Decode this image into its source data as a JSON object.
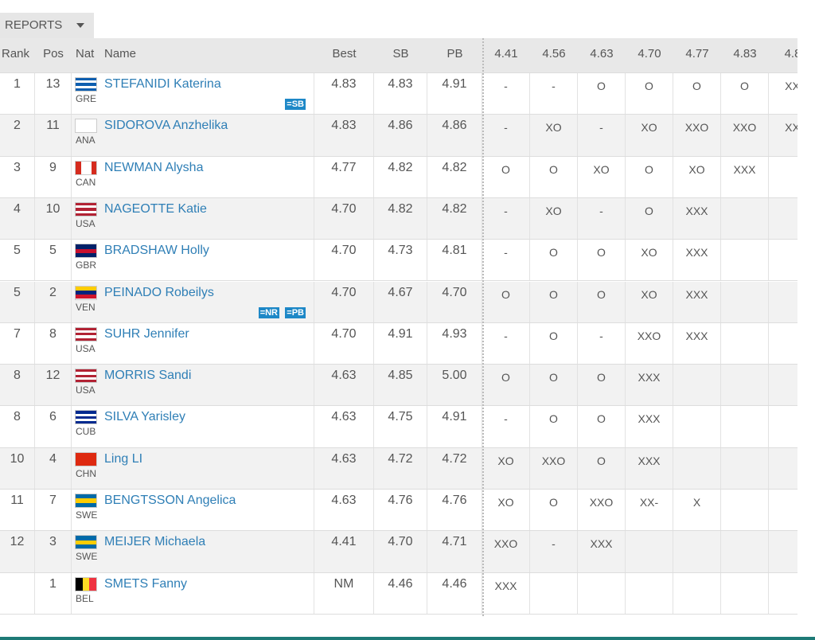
{
  "reports_button": "REPORTS",
  "table": {
    "headers": [
      "Rank",
      "Pos",
      "Nat",
      "Name",
      "Best",
      "SB",
      "PB",
      "4.41",
      "4.56",
      "4.63",
      "4.70",
      "4.77",
      "4.83",
      "4.8"
    ],
    "rows": [
      {
        "rank": "1",
        "pos": "13",
        "nat": "GRE",
        "name": "STEFANIDI Katerina",
        "badges": [
          "=SB"
        ],
        "best": "4.83",
        "sb": "4.83",
        "pb": "4.91",
        "attempts": [
          "-",
          "-",
          "O",
          "O",
          "O",
          "O",
          "XX"
        ],
        "flag": {
          "dir": "h",
          "colors": [
            "#0d5eaf",
            "#ffffff",
            "#0d5eaf",
            "#ffffff",
            "#0d5eaf"
          ]
        }
      },
      {
        "rank": "2",
        "pos": "11",
        "nat": "ANA",
        "name": "SIDOROVA Anzhelika",
        "best": "4.83",
        "sb": "4.86",
        "pb": "4.86",
        "attempts": [
          "-",
          "XO",
          "-",
          "XO",
          "XXO",
          "XXO",
          "XX"
        ],
        "flag": {
          "dir": "h",
          "colors": [
            "#ffffff"
          ]
        }
      },
      {
        "rank": "3",
        "pos": "9",
        "nat": "CAN",
        "name": "NEWMAN Alysha",
        "best": "4.77",
        "sb": "4.82",
        "pb": "4.82",
        "attempts": [
          "O",
          "O",
          "XO",
          "O",
          "XO",
          "XXX"
        ],
        "flag": {
          "dir": "v",
          "colors": [
            "#d52b1e",
            "#ffffff",
            "#ffffff",
            "#d52b1e"
          ]
        }
      },
      {
        "rank": "4",
        "pos": "10",
        "nat": "USA",
        "name": "NAGEOTTE Katie",
        "best": "4.70",
        "sb": "4.82",
        "pb": "4.82",
        "attempts": [
          "-",
          "XO",
          "-",
          "O",
          "XXX"
        ],
        "flag": {
          "dir": "h",
          "colors": [
            "#b22234",
            "#ffffff",
            "#b22234",
            "#ffffff",
            "#b22234"
          ]
        }
      },
      {
        "rank": "5",
        "pos": "5",
        "nat": "GBR",
        "name": "BRADSHAW Holly",
        "best": "4.70",
        "sb": "4.73",
        "pb": "4.81",
        "attempts": [
          "-",
          "O",
          "O",
          "XO",
          "XXX"
        ],
        "flag": {
          "dir": "h",
          "colors": [
            "#012169",
            "#c8102e",
            "#012169"
          ]
        }
      },
      {
        "rank": "5",
        "pos": "2",
        "nat": "VEN",
        "name": "PEINADO Robeilys",
        "badges": [
          "=NR",
          "=PB"
        ],
        "best": "4.70",
        "sb": "4.67",
        "pb": "4.70",
        "attempts": [
          "O",
          "O",
          "O",
          "XO",
          "XXX"
        ],
        "flag": {
          "dir": "h",
          "colors": [
            "#ffcc00",
            "#00247d",
            "#cf142b"
          ]
        }
      },
      {
        "rank": "7",
        "pos": "8",
        "nat": "USA",
        "name": "SUHR Jennifer",
        "best": "4.70",
        "sb": "4.91",
        "pb": "4.93",
        "attempts": [
          "-",
          "O",
          "-",
          "XXO",
          "XXX"
        ],
        "flag": {
          "dir": "h",
          "colors": [
            "#b22234",
            "#ffffff",
            "#b22234",
            "#ffffff",
            "#b22234"
          ]
        }
      },
      {
        "rank": "8",
        "pos": "12",
        "nat": "USA",
        "name": "MORRIS Sandi",
        "best": "4.63",
        "sb": "4.85",
        "pb": "5.00",
        "attempts": [
          "O",
          "O",
          "O",
          "XXX"
        ],
        "flag": {
          "dir": "h",
          "colors": [
            "#b22234",
            "#ffffff",
            "#b22234",
            "#ffffff",
            "#b22234"
          ]
        }
      },
      {
        "rank": "8",
        "pos": "6",
        "nat": "CUB",
        "name": "SILVA Yarisley",
        "best": "4.63",
        "sb": "4.75",
        "pb": "4.91",
        "attempts": [
          "-",
          "O",
          "O",
          "XXX"
        ],
        "flag": {
          "dir": "h",
          "colors": [
            "#002a8f",
            "#ffffff",
            "#002a8f",
            "#ffffff",
            "#002a8f"
          ]
        }
      },
      {
        "rank": "10",
        "pos": "4",
        "nat": "CHN",
        "name": "Ling LI",
        "best": "4.63",
        "sb": "4.72",
        "pb": "4.72",
        "attempts": [
          "XO",
          "XXO",
          "O",
          "XXX"
        ],
        "flag": {
          "dir": "h",
          "colors": [
            "#de2910"
          ]
        }
      },
      {
        "rank": "11",
        "pos": "7",
        "nat": "SWE",
        "name": "BENGTSSON Angelica",
        "best": "4.63",
        "sb": "4.76",
        "pb": "4.76",
        "attempts": [
          "XO",
          "O",
          "XXO",
          "XX-",
          "X"
        ],
        "flag": {
          "dir": "h",
          "colors": [
            "#006aa7",
            "#fecc00",
            "#006aa7"
          ]
        }
      },
      {
        "rank": "12",
        "pos": "3",
        "nat": "SWE",
        "name": "MEIJER Michaela",
        "best": "4.41",
        "sb": "4.70",
        "pb": "4.71",
        "attempts": [
          "XXO",
          "-",
          "XXX"
        ],
        "flag": {
          "dir": "h",
          "colors": [
            "#006aa7",
            "#fecc00",
            "#006aa7"
          ]
        }
      },
      {
        "pos": "1",
        "nat": "BEL",
        "name": "SMETS Fanny",
        "best": "NM",
        "sb": "4.46",
        "pb": "4.46",
        "attempts": [
          "XXX"
        ],
        "flag": {
          "dir": "v",
          "colors": [
            "#000000",
            "#fdda24",
            "#ef3340"
          ]
        }
      }
    ]
  }
}
